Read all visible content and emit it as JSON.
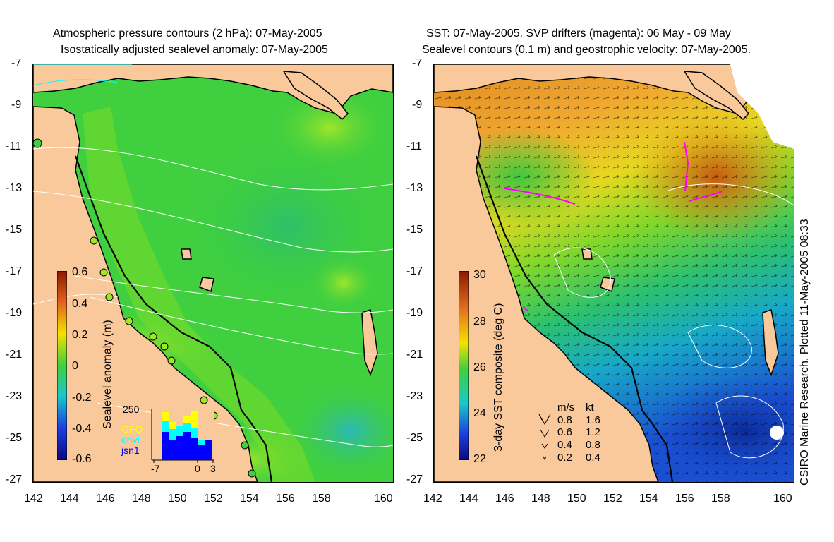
{
  "left_panel": {
    "title_line1": "Atmospheric pressure contours (2 hPa): 07-May-2005",
    "title_line2": "Isostatically adjusted sealevel anomaly: 07-May-2005",
    "colorbar": {
      "label": "Sealevel anomaly (m)",
      "ticks": [
        "0.6",
        "0.4",
        "0.2",
        "0",
        "-0.2",
        "-0.4",
        "-0.6"
      ]
    },
    "histogram": {
      "ymax_label": "250",
      "xticks": [
        "-7",
        "0",
        "3"
      ],
      "legend": [
        {
          "name": "GFO",
          "color": "#ffff00"
        },
        {
          "name": "envi",
          "color": "#00ffff"
        },
        {
          "name": "jsn1",
          "color": "#0000ff"
        }
      ]
    }
  },
  "right_panel": {
    "title_line1": "SST: 07-May-2005. SVP drifters (magenta): 06 May - 09 May",
    "title_line2": "Sealevel contours (0.1 m) and geostrophic velocity: 07-May-2005.",
    "colorbar": {
      "label": "3-day SST composite (deg C)",
      "ticks": [
        "30",
        "28",
        "26",
        "24",
        "22"
      ]
    },
    "velocity_legend": {
      "header_ms": "m/s",
      "header_kt": "kt",
      "rows": [
        {
          "ms": "0.8",
          "kt": "1.6"
        },
        {
          "ms": "0.6",
          "kt": "1.2"
        },
        {
          "ms": "0.4",
          "kt": "0.8"
        },
        {
          "ms": "0.2",
          "kt": "0.4"
        }
      ]
    },
    "credit": "CSIRO Marine Research. Plotted 11-May-2005 08:33"
  },
  "axes": {
    "y_ticks": [
      "-7",
      "-9",
      "-11",
      "-13",
      "-15",
      "-17",
      "-19",
      "-21",
      "-23",
      "-25",
      "-27"
    ],
    "x_ticks": [
      "142",
      "144",
      "146",
      "148",
      "150",
      "152",
      "154",
      "156",
      "158",
      "160"
    ]
  },
  "colors": {
    "land": "#f9c89b",
    "sla_ocean": "#3fcf3f",
    "sst_warm": "#e08a20",
    "sst_cool": "#1a4fd0",
    "drifter": "#ff00ff"
  }
}
